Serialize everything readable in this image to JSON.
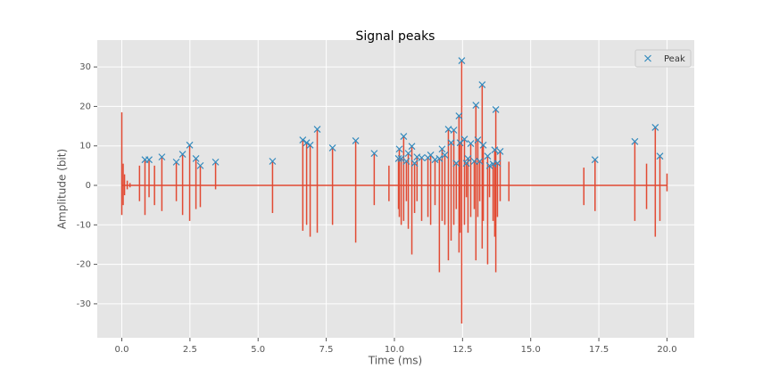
{
  "chart_data": {
    "type": "peaks",
    "title": "Signal peaks",
    "xlabel": "Time (ms)",
    "ylabel": "Amplitude (bit)",
    "xlim": [
      -0.9,
      21.0
    ],
    "ylim": [
      -38.6,
      36.8
    ],
    "xticks": [
      {
        "value": 0,
        "label": "0.0"
      },
      2.5,
      {
        "value": 5,
        "label": "5.0"
      },
      7.5,
      {
        "value": 10,
        "label": "10.0"
      },
      12.5,
      {
        "value": 15,
        "label": "15.0"
      },
      17.5,
      {
        "value": 20,
        "label": "20.0"
      }
    ],
    "yticks": [
      -30,
      -20,
      -10,
      0,
      10,
      20,
      30
    ],
    "grid": true,
    "legend": "upper right",
    "signal": {
      "color": "#e24a33",
      "x": [
        0,
        0.05,
        0.1,
        0.2,
        0.3,
        0.65,
        0.85,
        1.0,
        1.2,
        1.47,
        2.0,
        2.23,
        2.49,
        2.72,
        2.88,
        3.44,
        5.53,
        6.64,
        6.78,
        6.91,
        7.17,
        7.73,
        8.58,
        9.26,
        9.8,
        10.15,
        10.18,
        10.25,
        10.34,
        10.44,
        10.51,
        10.64,
        10.74,
        10.83,
        11.0,
        11.23,
        11.33,
        11.49,
        11.65,
        11.75,
        11.85,
        11.98,
        12.08,
        12.18,
        12.27,
        12.37,
        12.41,
        12.47,
        12.57,
        12.64,
        12.7,
        12.8,
        12.93,
        12.99,
        13.06,
        13.13,
        13.22,
        13.26,
        13.42,
        13.49,
        13.62,
        13.68,
        13.72,
        13.78,
        13.88,
        14.2,
        16.95,
        17.36,
        18.82,
        19.25,
        19.57,
        19.74,
        20.0
      ],
      "high": [
        18.5,
        5.5,
        2.8,
        1.2,
        0.6,
        5,
        6.5,
        6.5,
        5,
        7.2,
        5.9,
        7.9,
        10.2,
        6.8,
        5.0,
        5.9,
        6.1,
        11.5,
        10.8,
        10.2,
        14.2,
        9.5,
        11.3,
        8.1,
        5,
        6.8,
        9.2,
        6.8,
        12.4,
        6.1,
        8.1,
        9.9,
        5.6,
        7.2,
        7.0,
        7.0,
        7.7,
        6.5,
        6.8,
        9.2,
        7.7,
        14.2,
        10.8,
        14.0,
        5.6,
        17.6,
        10.8,
        31.6,
        11.7,
        5.6,
        6.8,
        10.6,
        6.1,
        20.3,
        11.5,
        6.1,
        25.5,
        10.2,
        7.4,
        5.0,
        5.4,
        9.0,
        19.2,
        5.6,
        8.6,
        6,
        4.5,
        6.5,
        11.1,
        5.5,
        14.7,
        7.4,
        3
      ],
      "low": [
        -7.5,
        -5,
        -2.5,
        -1,
        -0.5,
        -4,
        -7.5,
        -3,
        -5,
        -6.5,
        -4,
        -7.5,
        -9,
        -6,
        -5.5,
        -1,
        -7,
        -11.5,
        -10,
        -13,
        -12,
        -10,
        -14.5,
        -5,
        -4,
        -6,
        -8,
        -10,
        -9,
        -4,
        -11,
        -17.5,
        -7,
        -4,
        -9,
        -8,
        -10,
        -5,
        -22,
        -9,
        -10,
        -19,
        -14,
        -10,
        -6,
        -17,
        -12,
        -35,
        -10,
        -3,
        -12,
        -8,
        -6,
        -19,
        -8,
        -4,
        -16,
        -9,
        -20,
        -3,
        -9,
        -13,
        -22,
        -8,
        -4,
        -4,
        -5,
        -6.5,
        -9,
        -6,
        -13,
        -9,
        -1.5
      ]
    },
    "peaks": {
      "name": "Peak",
      "color": "#348abd",
      "x": [
        0.85,
        1.0,
        1.47,
        2.0,
        2.23,
        2.49,
        2.72,
        2.88,
        3.44,
        5.53,
        6.64,
        6.78,
        6.91,
        7.17,
        7.73,
        8.58,
        9.26,
        10.15,
        10.18,
        10.25,
        10.34,
        10.44,
        10.51,
        10.64,
        10.74,
        10.83,
        11.0,
        11.23,
        11.33,
        11.49,
        11.65,
        11.75,
        11.85,
        11.98,
        12.08,
        12.18,
        12.27,
        12.37,
        12.41,
        12.47,
        12.57,
        12.64,
        12.7,
        12.8,
        12.93,
        12.99,
        13.06,
        13.13,
        13.22,
        13.26,
        13.42,
        13.49,
        13.62,
        13.68,
        13.72,
        13.78,
        13.88,
        17.36,
        18.82,
        19.57,
        19.74
      ],
      "values": [
        6.5,
        6.5,
        7.2,
        5.9,
        7.9,
        10.2,
        6.8,
        5.0,
        5.9,
        6.1,
        11.5,
        10.8,
        10.2,
        14.2,
        9.5,
        11.3,
        8.1,
        6.8,
        9.2,
        6.8,
        12.4,
        6.1,
        8.1,
        9.9,
        5.6,
        7.2,
        7.0,
        7.0,
        7.7,
        6.5,
        6.8,
        9.2,
        7.7,
        14.2,
        10.8,
        14.0,
        5.6,
        17.6,
        10.8,
        31.6,
        11.7,
        5.6,
        6.8,
        10.6,
        6.1,
        20.3,
        11.5,
        6.1,
        25.5,
        10.2,
        7.4,
        5.0,
        5.4,
        9.0,
        19.2,
        5.6,
        8.6,
        6.5,
        11.1,
        14.7,
        7.4
      ]
    }
  }
}
